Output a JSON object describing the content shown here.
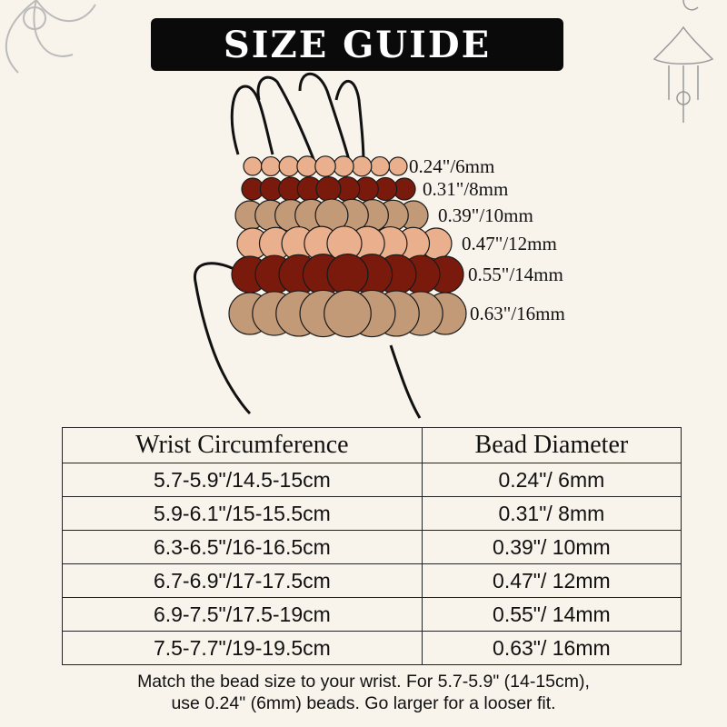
{
  "title": "SIZE GUIDE",
  "colors": {
    "background": "#f8f4ec",
    "banner": "#0a0a0a",
    "peach": "#eab08e",
    "maroon": "#7a1a0c",
    "tan": "#c29a78"
  },
  "bracelets": [
    {
      "label": "0.24\"/6mm",
      "color": "#eab08e"
    },
    {
      "label": "0.31\"/8mm",
      "color": "#7a1a0c"
    },
    {
      "label": "0.39\"/10mm",
      "color": "#c29a78"
    },
    {
      "label": "0.47\"/12mm",
      "color": "#eab08e"
    },
    {
      "label": "0.55\"/14mm",
      "color": "#7a1a0c"
    },
    {
      "label": "0.63\"/16mm",
      "color": "#c29a78"
    }
  ],
  "table": {
    "headers": [
      "Wrist Circumference",
      "Bead Diameter"
    ],
    "rows": [
      [
        "5.7-5.9\"/14.5-15cm",
        "0.24\"/ 6mm"
      ],
      [
        "5.9-6.1\"/15-15.5cm",
        "0.31\"/ 8mm"
      ],
      [
        "6.3-6.5\"/16-16.5cm",
        "0.39\"/ 10mm"
      ],
      [
        "6.7-6.9\"/17-17.5cm",
        "0.47\"/ 12mm"
      ],
      [
        "6.9-7.5\"/17.5-19cm",
        "0.55\"/ 14mm"
      ],
      [
        "7.5-7.7\"/19-19.5cm",
        "0.63\"/ 16mm"
      ]
    ]
  },
  "note_line1": "Match the bead size to your wrist. For 5.7-5.9\" (14-15cm),",
  "note_line2": "use 0.24\" (6mm) beads. Go larger for a looser fit."
}
